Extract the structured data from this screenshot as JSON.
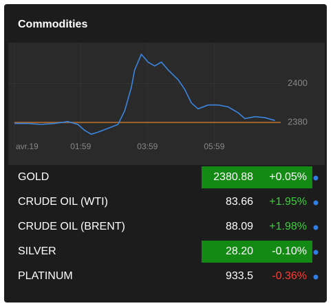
{
  "title": "Commodities",
  "chart_data": {
    "type": "line",
    "x": [
      0,
      0.4,
      0.8,
      1.2,
      1.6,
      1.9,
      2.1,
      2.3,
      2.5,
      2.8,
      3.1,
      3.3,
      3.5,
      3.6,
      3.8,
      4.0,
      4.2,
      4.4,
      4.6,
      4.9,
      5.1,
      5.3,
      5.5,
      5.8,
      6.1,
      6.4,
      6.7,
      6.9,
      7.2,
      7.5,
      7.8
    ],
    "series": [
      {
        "color": "#3a86e0",
        "values": [
          2379.5,
          2379.5,
          2379,
          2379.5,
          2380.5,
          2379,
          2376,
          2374,
          2375,
          2377,
          2379,
          2386,
          2398,
          2407,
          2415,
          2411,
          2409,
          2411,
          2407,
          2402,
          2397,
          2390,
          2387,
          2389,
          2389,
          2388,
          2385,
          2382,
          2383,
          2382.5,
          2381
        ]
      }
    ],
    "baseline": 2380,
    "baseline_color": "#a0652e",
    "xlim": [
      0,
      7.85
    ],
    "xticks": [
      {
        "value": 0,
        "label": "avr.19"
      },
      {
        "value": 1.983,
        "label": "01:59"
      },
      {
        "value": 3.983,
        "label": "03:59"
      },
      {
        "value": 5.983,
        "label": "05:59"
      }
    ],
    "ylim": [
      2367,
      2421
    ],
    "yticks": [
      2380,
      2400
    ],
    "grid": true
  },
  "table": {
    "rows": [
      {
        "name": "GOLD",
        "price": "2380.88",
        "change": "+0.05%",
        "highlight": true,
        "direction": "up"
      },
      {
        "name": "CRUDE OIL (WTI)",
        "price": "83.66",
        "change": "+1.95%",
        "highlight": false,
        "direction": "up"
      },
      {
        "name": "CRUDE OIL (BRENT)",
        "price": "88.09",
        "change": "+1.98%",
        "highlight": false,
        "direction": "up"
      },
      {
        "name": "SILVER",
        "price": "28.20",
        "change": "-0.10%",
        "highlight": true,
        "direction": "down"
      },
      {
        "name": "PLATINUM",
        "price": "933.5",
        "change": "-0.36%",
        "highlight": false,
        "direction": "down"
      }
    ]
  }
}
